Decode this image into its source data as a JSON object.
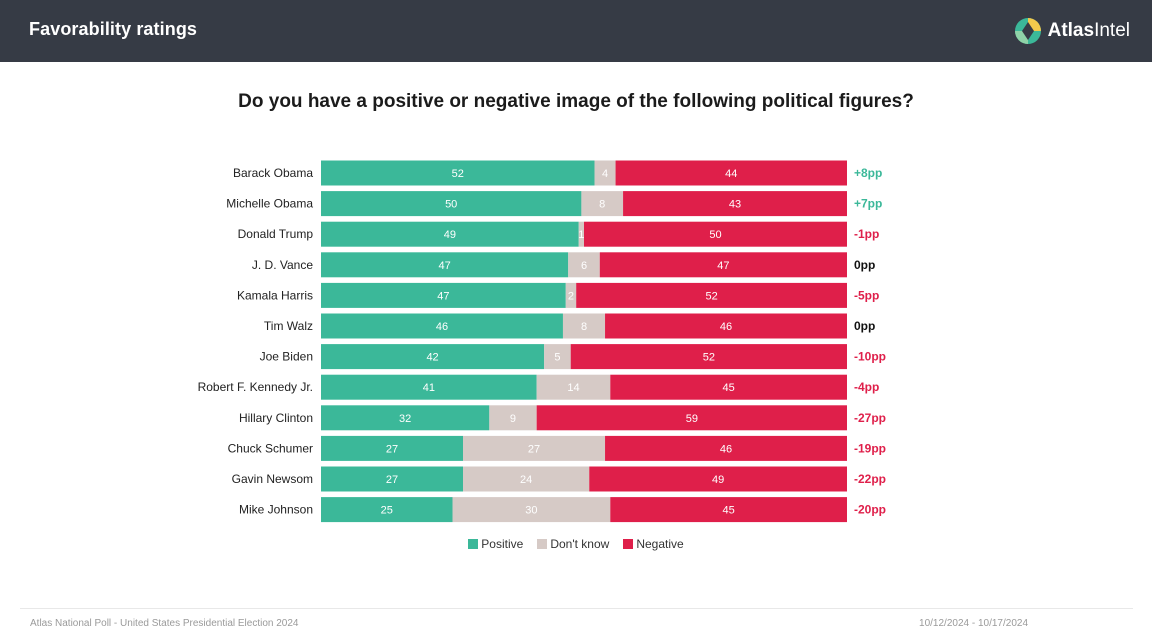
{
  "header": {
    "title": "Favorability ratings",
    "brand_bold": "Atlas",
    "brand_light": "Intel"
  },
  "colors": {
    "positive": "#3bb899",
    "dont_know": "#d6cac6",
    "negative": "#df1f4a",
    "net_positive": "#3bb899",
    "net_negative": "#df1f4a",
    "net_zero": "#111111"
  },
  "chart_data": {
    "type": "bar",
    "orientation": "horizontal-stacked",
    "title": "Do you have a positive or negative image of the following political figures?",
    "categories": [
      "Barack Obama",
      "Michelle Obama",
      "Donald Trump",
      "J. D. Vance",
      "Kamala Harris",
      "Tim Walz",
      "Joe Biden",
      "Robert F. Kennedy Jr.",
      "Hillary Clinton",
      "Chuck Schumer",
      "Gavin Newsom",
      "Mike Johnson"
    ],
    "series": [
      {
        "name": "Positive",
        "values": [
          52,
          50,
          49,
          47,
          47,
          46,
          42,
          41,
          32,
          27,
          27,
          25
        ]
      },
      {
        "name": "Don't know",
        "values": [
          4,
          8,
          1,
          6,
          2,
          8,
          5,
          14,
          9,
          27,
          24,
          30
        ]
      },
      {
        "name": "Negative",
        "values": [
          44,
          43,
          50,
          47,
          52,
          46,
          52,
          45,
          59,
          46,
          49,
          45
        ]
      }
    ],
    "net_labels": [
      "+8pp",
      "+7pp",
      "-1pp",
      "0pp",
      "-5pp",
      "0pp",
      "-10pp",
      "-4pp",
      "-27pp",
      "-19pp",
      "-22pp",
      "-20pp"
    ],
    "xlim": [
      0,
      100
    ],
    "legend": {
      "position": "bottom",
      "entries": [
        "Positive",
        "Don't know",
        "Negative"
      ]
    }
  },
  "footer": {
    "source": "Atlas National Poll - United States Presidential Election 2024",
    "date_range": "10/12/2024 - 10/17/2024"
  }
}
